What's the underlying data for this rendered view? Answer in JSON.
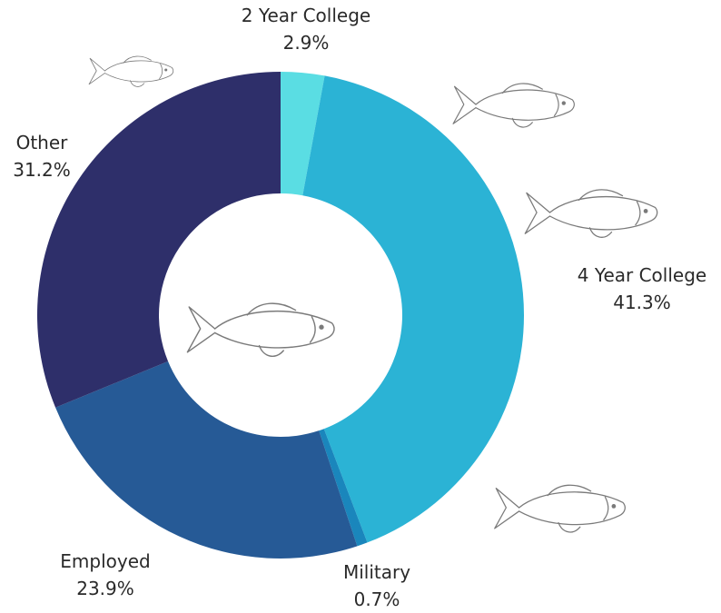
{
  "chart_data": {
    "type": "pie",
    "variant": "donut",
    "categories": [
      "2 Year College",
      "4 Year College",
      "Military",
      "Employed",
      "Other"
    ],
    "values": [
      2.9,
      41.3,
      0.7,
      23.9,
      31.2
    ],
    "value_labels": [
      "2.9%",
      "41.3%",
      "0.7%",
      "23.9%",
      "31.2%"
    ],
    "colors": [
      "#5ADDE3",
      "#2BB3D5",
      "#1A86BC",
      "#265A96",
      "#2E2F6A"
    ],
    "start_angle_deg": 0,
    "direction": "clockwise"
  },
  "decorations": {
    "fish_icon": "fish-sketch-icon"
  }
}
